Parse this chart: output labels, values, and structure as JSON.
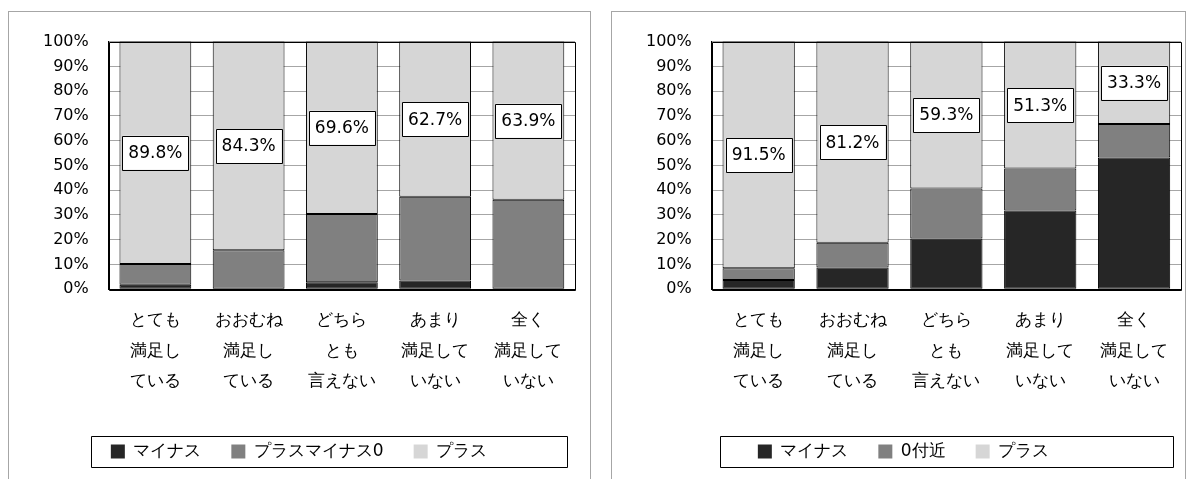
{
  "chart_data": [
    {
      "type": "bar",
      "stacked": true,
      "categories": [
        "とても満足している",
        "おおむね満足している",
        "どちらとも言えない",
        "あまり満足していない",
        "全く満足していない"
      ],
      "series": [
        {
          "name": "マイナス",
          "color": "#262626",
          "values": [
            1.8,
            0,
            2.8,
            3.5,
            0
          ]
        },
        {
          "name": "プラスマイナス0",
          "color": "#808080",
          "values": [
            8.4,
            15.7,
            27.6,
            33.8,
            36.1
          ]
        },
        {
          "name": "プラス",
          "color": "#d6d6d6",
          "values": [
            89.8,
            84.3,
            69.6,
            62.7,
            63.9
          ],
          "value_labels": [
            "89.8%",
            "84.3%",
            "69.6%",
            "62.7%",
            "63.9%"
          ]
        }
      ],
      "ylim": [
        0,
        100
      ],
      "yticks": [
        {
          "value": 0,
          "label": "0%"
        },
        {
          "value": 10,
          "label": "10%"
        },
        {
          "value": 20,
          "label": "20%"
        },
        {
          "value": 30,
          "label": "30%"
        },
        {
          "value": 40,
          "label": "40%"
        },
        {
          "value": 50,
          "label": "50%"
        },
        {
          "value": 60,
          "label": "60%"
        },
        {
          "value": 70,
          "label": "70%"
        },
        {
          "value": 80,
          "label": "80%"
        },
        {
          "value": 90,
          "label": "90%"
        },
        {
          "value": 100,
          "label": "100%"
        }
      ],
      "grid": "y",
      "legend": "bottom"
    },
    {
      "type": "bar",
      "stacked": true,
      "categories": [
        "とても満足している",
        "おおむね満足している",
        "どちらとも言えない",
        "あまり満足していない",
        "全く満足していない"
      ],
      "series": [
        {
          "name": "マイナス",
          "color": "#262626",
          "values": [
            3.7,
            8.8,
            20.5,
            31.8,
            53.2
          ]
        },
        {
          "name": "0付近",
          "color": "#808080",
          "values": [
            4.8,
            10.0,
            20.2,
            16.9,
            13.5
          ]
        },
        {
          "name": "プラス",
          "color": "#d6d6d6",
          "values": [
            91.5,
            81.2,
            59.3,
            51.3,
            33.3
          ],
          "value_labels": [
            "91.5%",
            "81.2%",
            "59.3%",
            "51.3%",
            "33.3%"
          ]
        }
      ],
      "ylim": [
        0,
        100
      ],
      "yticks": [
        {
          "value": 0,
          "label": "0%"
        },
        {
          "value": 10,
          "label": "10%"
        },
        {
          "value": 20,
          "label": "20%"
        },
        {
          "value": 30,
          "label": "30%"
        },
        {
          "value": 40,
          "label": "40%"
        },
        {
          "value": 50,
          "label": "50%"
        },
        {
          "value": 60,
          "label": "60%"
        },
        {
          "value": 70,
          "label": "70%"
        },
        {
          "value": 80,
          "label": "80%"
        },
        {
          "value": 90,
          "label": "90%"
        },
        {
          "value": 100,
          "label": "100%"
        }
      ],
      "grid": "y",
      "legend": "bottom"
    }
  ]
}
